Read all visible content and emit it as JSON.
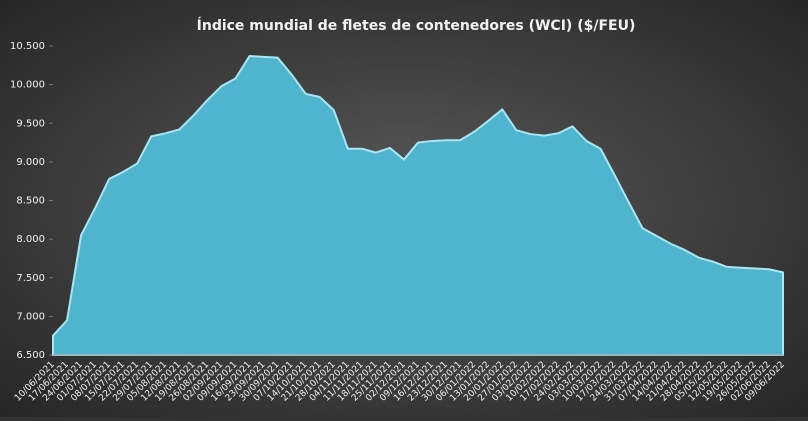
{
  "chart_data": {
    "type": "area",
    "title": "Índice mundial de fletes de contenedores (WCI) ($/FEU)",
    "categories": [
      "10/06/2021",
      "17/06/2021",
      "24/06/2021",
      "01/07/2021",
      "08/07/2021",
      "15/07/2021",
      "22/07/2021",
      "29/07/2021",
      "05/08/2021",
      "12/08/2021",
      "19/08/2021",
      "26/08/2021",
      "02/09/2021",
      "09/09/2021",
      "16/09/2021",
      "23/09/2021",
      "30/09/2021",
      "07/10/2021",
      "14/10/2021",
      "21/10/2021",
      "28/10/2021",
      "04/11/2021",
      "11/11/2021",
      "18/11/2021",
      "25/11/2021",
      "02/12/2021",
      "09/12/2021",
      "16/12/2021",
      "23/12/2021",
      "30/12/2021",
      "06/01/2022",
      "13/01/2022",
      "20/01/2022",
      "27/01/2022",
      "03/02/2022",
      "10/02/2022",
      "17/02/2022",
      "24/02/2022",
      "03/03/2022",
      "10/03/2022",
      "17/03/2022",
      "24/03/2022",
      "31/03/2022",
      "07/04/2022",
      "14/04/2022",
      "21/04/2022",
      "28/04/2022",
      "05/05/2022",
      "12/05/2022",
      "19/05/2022",
      "26/05/2022",
      "02/06/2022",
      "09/06/2022"
    ],
    "values": [
      6750,
      6950,
      8050,
      8400,
      8780,
      8870,
      8980,
      9330,
      9370,
      9420,
      9600,
      9800,
      9980,
      10080,
      10370,
      10360,
      10350,
      10130,
      9880,
      9840,
      9670,
      9170,
      9170,
      9120,
      9180,
      9030,
      9250,
      9270,
      9280,
      9280,
      9390,
      9530,
      9680,
      9410,
      9360,
      9340,
      9370,
      9460,
      9270,
      9170,
      8830,
      8480,
      8140,
      8040,
      7940,
      7860,
      7760,
      7710,
      7640,
      7630,
      7620,
      7610,
      7570
    ],
    "color": "#4fb4cd",
    "ylim": [
      6500,
      10500
    ],
    "yticks": [
      {
        "value": 6500,
        "label": "6.500"
      },
      {
        "value": 7000,
        "label": "7.000"
      },
      {
        "value": 7500,
        "label": "7.500"
      },
      {
        "value": 8000,
        "label": "8.000"
      },
      {
        "value": 8500,
        "label": "8.500"
      },
      {
        "value": 9000,
        "label": "9.000"
      },
      {
        "value": 9500,
        "label": "9.500"
      },
      {
        "value": 10000,
        "label": "10.000"
      },
      {
        "value": 10500,
        "label": "10.500"
      }
    ],
    "grid": false
  }
}
